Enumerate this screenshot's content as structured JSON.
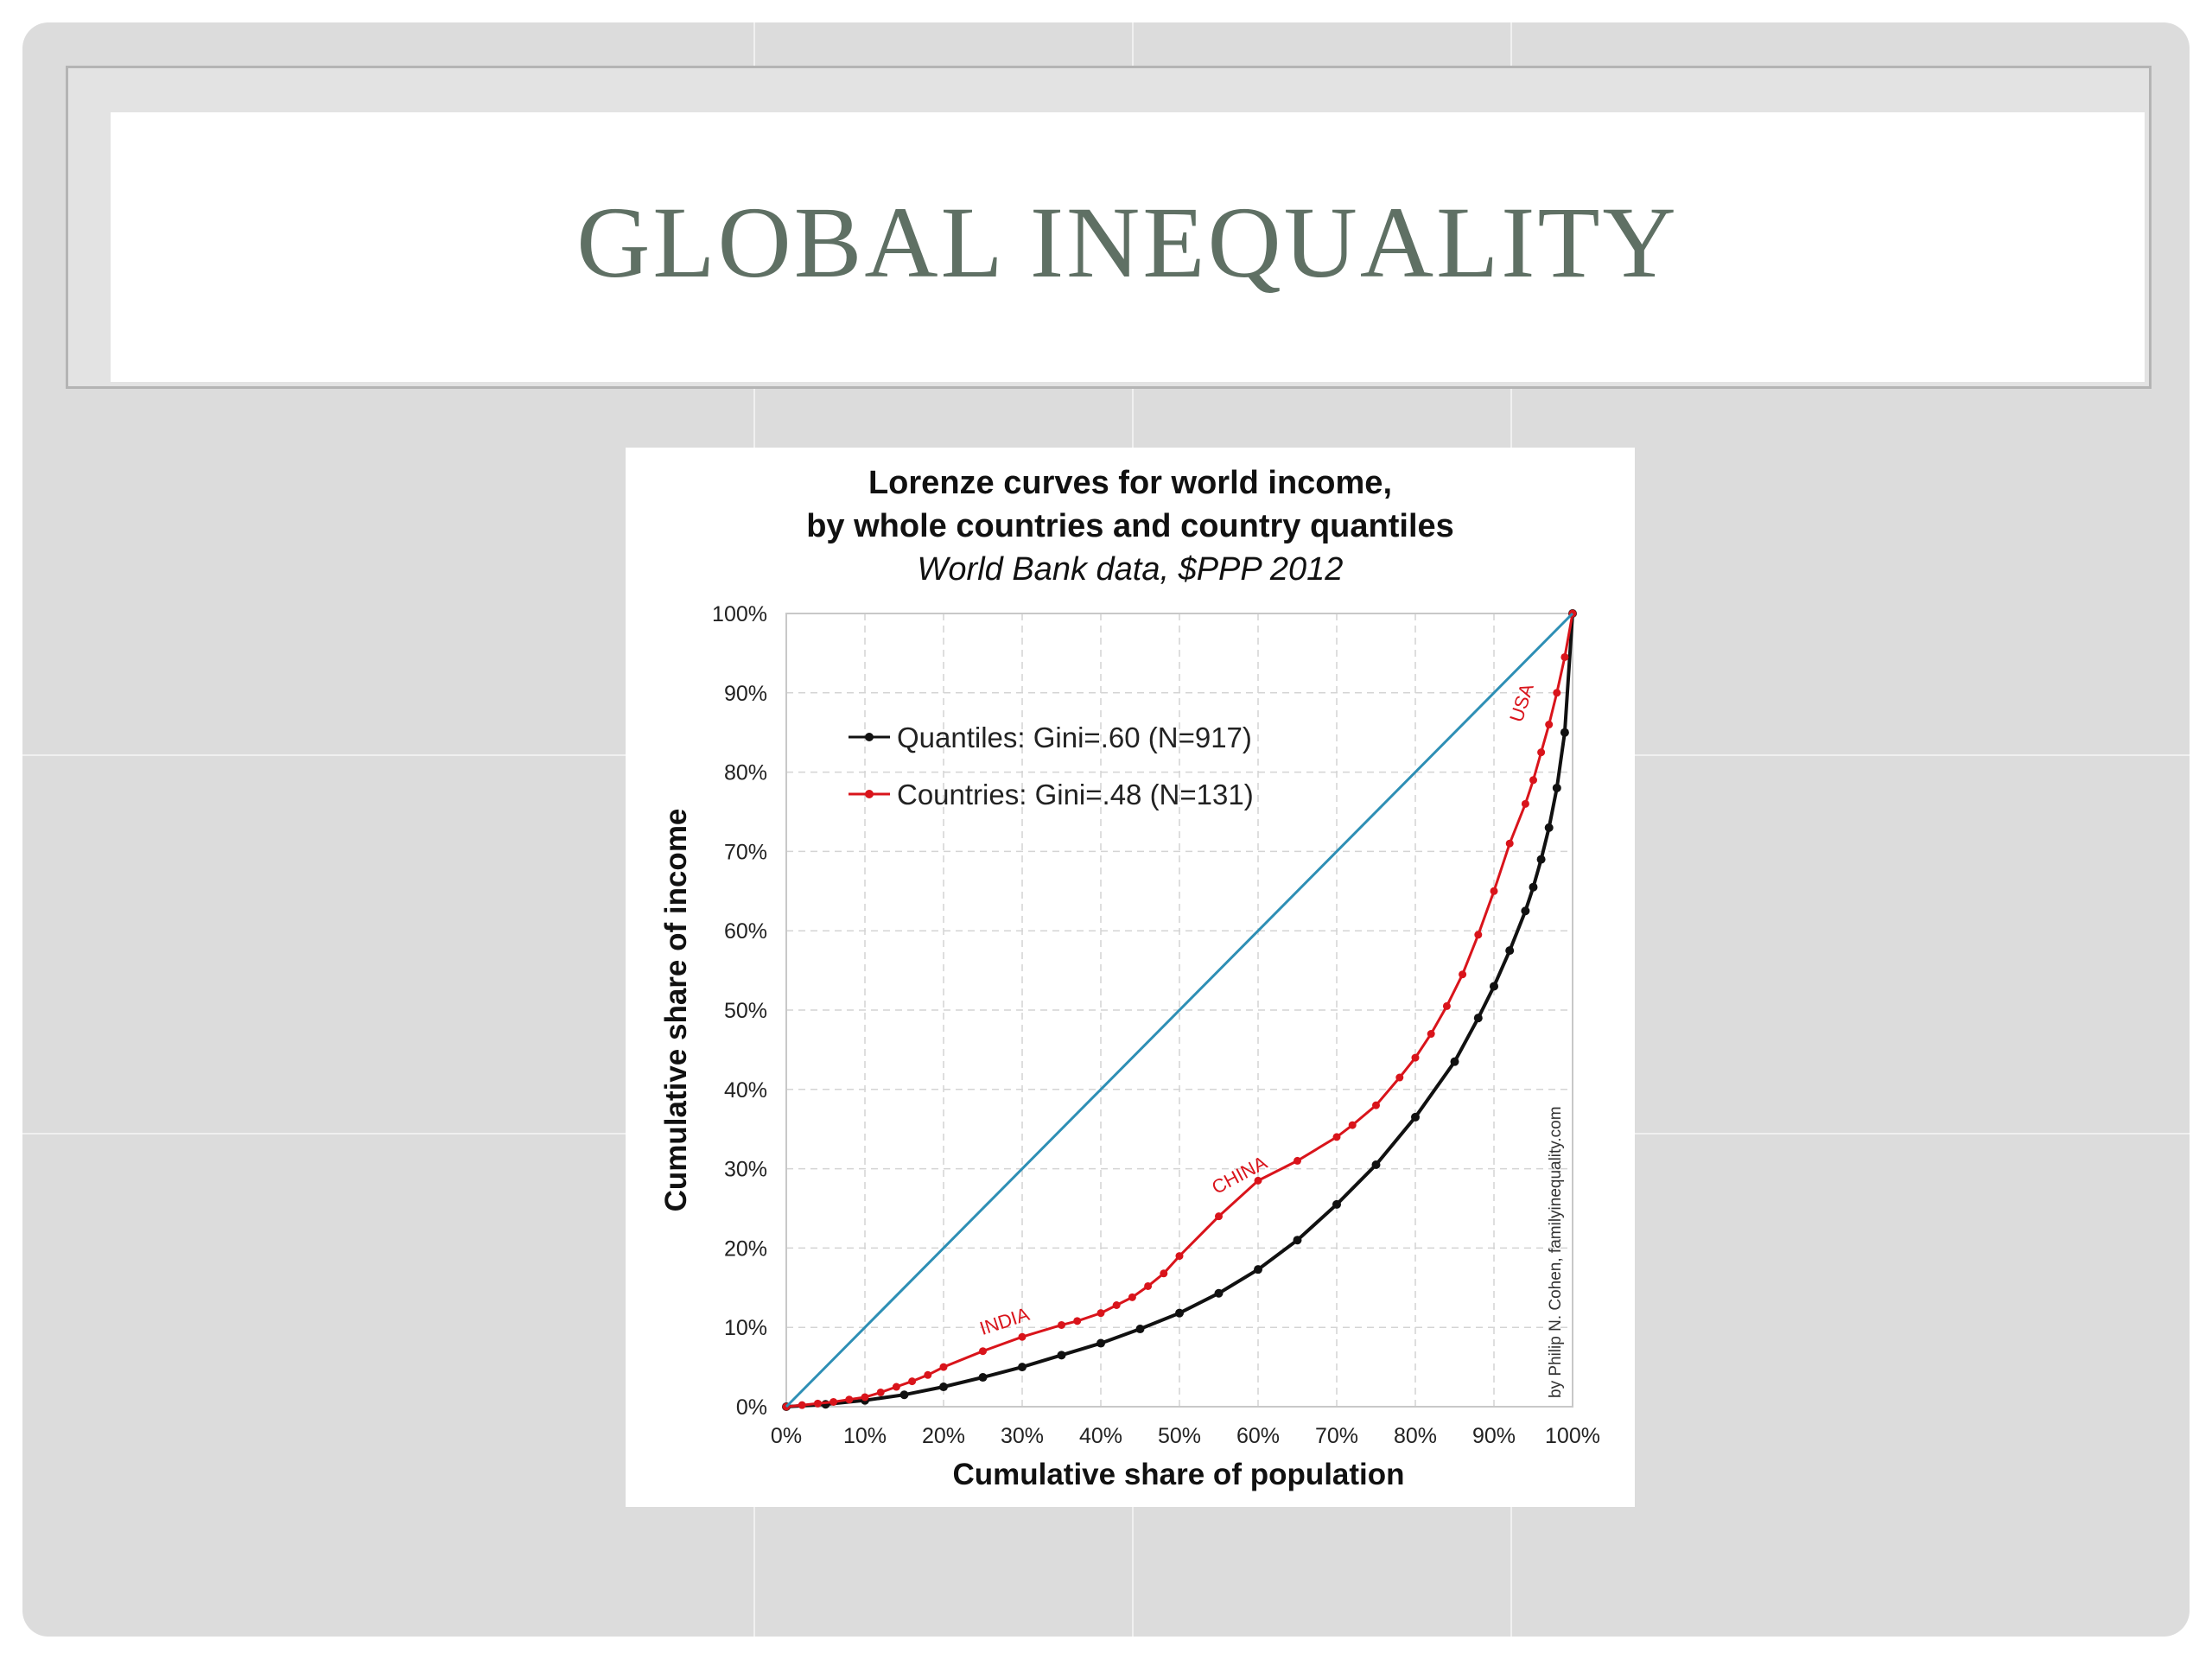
{
  "slide": {
    "title": "GLOBAL INEQUALITY"
  },
  "chart_data": {
    "type": "line",
    "title": "Lorenze curves for world income,",
    "title_line2": "by whole countries and country quantiles",
    "subtitle": "World Bank data, $PPP 2012",
    "xlabel": "Cumulative share of population",
    "ylabel": "Cumulative share of income",
    "xlim": [
      0,
      100
    ],
    "ylim": [
      0,
      100
    ],
    "xticks": [
      "0%",
      "10%",
      "20%",
      "30%",
      "40%",
      "50%",
      "60%",
      "70%",
      "80%",
      "90%",
      "100%"
    ],
    "yticks": [
      "0%",
      "10%",
      "20%",
      "30%",
      "40%",
      "50%",
      "60%",
      "70%",
      "80%",
      "90%",
      "100%"
    ],
    "grid": true,
    "legend_position": "top-left",
    "credit": "by Philip N. Cohen, familyinequality.com",
    "colors": {
      "equality": "#2e8fb5",
      "countries": "#d9141b",
      "quantiles": "#111111"
    },
    "series": [
      {
        "name": "equality",
        "x": [
          0,
          100
        ],
        "y": [
          0,
          100
        ]
      },
      {
        "name": "Countries: Gini=.48 (N=131)",
        "x": [
          0,
          2,
          4,
          6,
          8,
          10,
          12,
          14,
          16,
          18,
          20,
          25,
          30,
          35,
          37,
          40,
          42,
          44,
          46,
          48,
          50,
          55,
          60,
          65,
          70,
          72,
          75,
          78,
          80,
          82,
          84,
          86,
          88,
          90,
          92,
          94,
          95,
          96,
          97,
          98,
          99,
          100
        ],
        "y": [
          0,
          0.2,
          0.4,
          0.6,
          0.9,
          1.2,
          1.8,
          2.5,
          3.2,
          4.0,
          5.0,
          7.0,
          8.8,
          10.3,
          10.8,
          11.8,
          12.8,
          13.8,
          15.2,
          16.8,
          19.0,
          24.0,
          28.5,
          31.0,
          34.0,
          35.5,
          38.0,
          41.5,
          44.0,
          47.0,
          50.5,
          54.5,
          59.5,
          65.0,
          71.0,
          76.0,
          79.0,
          82.5,
          86.0,
          90.0,
          94.5,
          100
        ]
      },
      {
        "name": "Quantiles: Gini=.60 (N=917)",
        "x": [
          0,
          5,
          10,
          15,
          20,
          25,
          30,
          35,
          40,
          45,
          50,
          55,
          60,
          65,
          70,
          75,
          80,
          85,
          88,
          90,
          92,
          94,
          95,
          96,
          97,
          98,
          99,
          100
        ],
        "y": [
          0,
          0.3,
          0.8,
          1.5,
          2.5,
          3.7,
          5.0,
          6.5,
          8.0,
          9.8,
          11.8,
          14.3,
          17.3,
          21.0,
          25.5,
          30.5,
          36.5,
          43.5,
          49.0,
          53.0,
          57.5,
          62.5,
          65.5,
          69.0,
          73.0,
          78.0,
          85.0,
          100
        ]
      }
    ],
    "annotations": [
      {
        "text": "INDIA",
        "x": 28,
        "y": 10,
        "series": "countries"
      },
      {
        "text": "CHINA",
        "x": 58,
        "y": 28.5,
        "series": "countries"
      },
      {
        "text": "USA",
        "x": 94.3,
        "y": 88.5,
        "series": "countries"
      }
    ]
  }
}
